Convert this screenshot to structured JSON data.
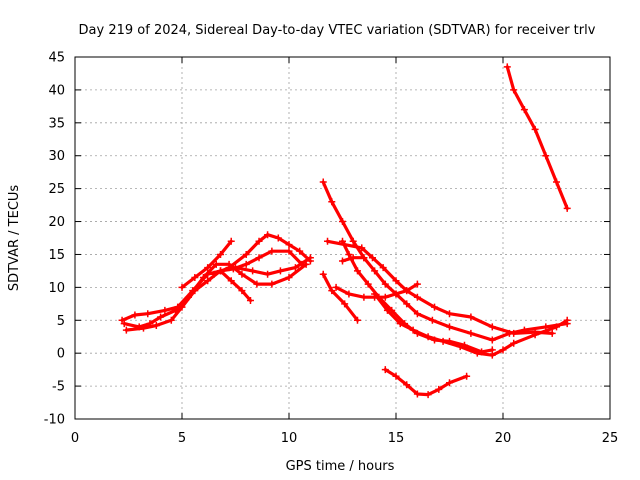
{
  "chart_data": {
    "type": "line",
    "title": "Day 219 of 2024, Sidereal Day-to-day VTEC variation (SDTVAR) for receiver trlv",
    "xlabel": "GPS time / hours",
    "ylabel": "SDTVAR / TECUs",
    "xlim": [
      0,
      25
    ],
    "ylim": [
      -10,
      45
    ],
    "xticks": [
      0,
      5,
      10,
      15,
      20,
      25
    ],
    "yticks": [
      -10,
      -5,
      0,
      5,
      10,
      15,
      20,
      25,
      30,
      35,
      40,
      45
    ],
    "grid": true,
    "color": "#ff0000",
    "series": [
      {
        "name": "trace-1",
        "points": [
          [
            2.3,
            4.5
          ],
          [
            3.0,
            4.0
          ],
          [
            3.5,
            4.5
          ],
          [
            4.0,
            5.5
          ],
          [
            4.7,
            6.5
          ],
          [
            5.3,
            8.5
          ],
          [
            6.0,
            11.5
          ],
          [
            6.6,
            13.5
          ],
          [
            7.2,
            13.5
          ],
          [
            7.8,
            12.0
          ],
          [
            8.5,
            10.5
          ],
          [
            9.2,
            10.5
          ],
          [
            10.0,
            11.5
          ],
          [
            10.8,
            13.5
          ]
        ]
      },
      {
        "name": "trace-2",
        "points": [
          [
            2.2,
            5.0
          ],
          [
            2.8,
            5.8
          ],
          [
            3.4,
            6.0
          ],
          [
            4.2,
            6.5
          ],
          [
            4.8,
            7.0
          ],
          [
            5.5,
            9.5
          ],
          [
            6.2,
            12.0
          ],
          [
            6.8,
            12.5
          ],
          [
            7.5,
            13.0
          ],
          [
            8.3,
            12.5
          ],
          [
            9.0,
            12.0
          ],
          [
            9.6,
            12.5
          ],
          [
            10.3,
            13.0
          ],
          [
            11.0,
            14.5
          ]
        ]
      },
      {
        "name": "trace-3",
        "points": [
          [
            2.4,
            3.5
          ],
          [
            3.2,
            3.8
          ],
          [
            3.8,
            4.2
          ],
          [
            4.5,
            5.0
          ],
          [
            5.0,
            7.0
          ],
          [
            5.6,
            9.5
          ],
          [
            6.2,
            11.0
          ],
          [
            6.8,
            12.5
          ],
          [
            7.4,
            12.8
          ],
          [
            8.0,
            13.5
          ],
          [
            8.6,
            14.5
          ],
          [
            9.2,
            15.5
          ],
          [
            10.0,
            15.5
          ],
          [
            10.6,
            13.5
          ]
        ]
      },
      {
        "name": "trace-4",
        "points": [
          [
            5.0,
            10.0
          ],
          [
            5.6,
            11.5
          ],
          [
            6.2,
            13.0
          ],
          [
            6.8,
            15.0
          ],
          [
            7.3,
            17.0
          ]
        ]
      },
      {
        "name": "trace-5",
        "points": [
          [
            6.5,
            12.0
          ],
          [
            7.2,
            13.0
          ],
          [
            8.0,
            15.0
          ],
          [
            8.6,
            17.0
          ],
          [
            9.0,
            18.0
          ],
          [
            9.5,
            17.5
          ],
          [
            10.0,
            16.5
          ],
          [
            10.5,
            15.5
          ],
          [
            11.0,
            14.0
          ]
        ]
      },
      {
        "name": "trace-6",
        "points": [
          [
            6.8,
            12.5
          ],
          [
            7.3,
            11.0
          ],
          [
            7.8,
            9.5
          ],
          [
            8.2,
            8.0
          ]
        ]
      },
      {
        "name": "trace-7",
        "points": [
          [
            11.6,
            26.0
          ],
          [
            12.0,
            23.0
          ],
          [
            12.5,
            20.0
          ],
          [
            13.0,
            17.0
          ],
          [
            13.5,
            14.5
          ],
          [
            14.0,
            12.5
          ],
          [
            14.5,
            10.5
          ],
          [
            15.0,
            9.0
          ],
          [
            15.5,
            7.5
          ],
          [
            16.0,
            6.0
          ],
          [
            16.7,
            5.0
          ],
          [
            17.5,
            4.0
          ],
          [
            18.5,
            3.0
          ],
          [
            19.5,
            2.0
          ],
          [
            20.3,
            3.0
          ],
          [
            21.0,
            3.5
          ],
          [
            22.0,
            4.0
          ],
          [
            23.0,
            4.5
          ]
        ]
      },
      {
        "name": "trace-8",
        "points": [
          [
            11.6,
            12.0
          ],
          [
            12.0,
            9.5
          ],
          [
            12.6,
            7.5
          ],
          [
            13.2,
            5.0
          ]
        ]
      },
      {
        "name": "trace-9",
        "points": [
          [
            11.8,
            17.0
          ],
          [
            12.6,
            16.5
          ],
          [
            13.4,
            16.0
          ],
          [
            13.9,
            14.5
          ],
          [
            14.4,
            13.0
          ],
          [
            15.0,
            11.0
          ],
          [
            15.5,
            9.5
          ],
          [
            16.0,
            8.5
          ],
          [
            16.8,
            7.0
          ],
          [
            17.5,
            6.0
          ],
          [
            18.5,
            5.5
          ],
          [
            19.5,
            4.0
          ],
          [
            20.5,
            3.0
          ],
          [
            21.5,
            3.2
          ],
          [
            22.3,
            3.0
          ]
        ]
      },
      {
        "name": "trace-10",
        "points": [
          [
            12.5,
            17.0
          ],
          [
            12.8,
            15.0
          ],
          [
            13.2,
            12.5
          ],
          [
            13.7,
            10.5
          ],
          [
            14.2,
            8.5
          ],
          [
            14.8,
            6.5
          ],
          [
            15.4,
            4.5
          ],
          [
            16.0,
            3.0
          ],
          [
            16.8,
            2.0
          ],
          [
            17.5,
            1.8
          ],
          [
            18.2,
            1.2
          ],
          [
            19.0,
            0.2
          ],
          [
            19.5,
            0.5
          ]
        ]
      },
      {
        "name": "trace-11",
        "points": [
          [
            12.2,
            10.0
          ],
          [
            12.8,
            9.0
          ],
          [
            13.5,
            8.5
          ],
          [
            14.0,
            8.5
          ],
          [
            14.5,
            8.5
          ],
          [
            15.0,
            9.0
          ],
          [
            15.5,
            9.5
          ],
          [
            16.0,
            10.5
          ]
        ]
      },
      {
        "name": "trace-12",
        "points": [
          [
            14.0,
            9.0
          ],
          [
            14.6,
            6.5
          ],
          [
            15.2,
            4.5
          ],
          [
            15.8,
            3.5
          ],
          [
            16.5,
            2.5
          ],
          [
            17.2,
            1.8
          ],
          [
            18.0,
            1.0
          ],
          [
            18.8,
            0.0
          ],
          [
            19.5,
            -0.3
          ],
          [
            20.0,
            0.5
          ],
          [
            20.5,
            1.5
          ],
          [
            21.5,
            2.8
          ],
          [
            22.5,
            4.0
          ],
          [
            23.0,
            5.0
          ]
        ]
      },
      {
        "name": "trace-13",
        "points": [
          [
            12.5,
            14.0
          ],
          [
            13.0,
            14.5
          ],
          [
            13.5,
            14.5
          ]
        ]
      },
      {
        "name": "trace-14",
        "points": [
          [
            14.5,
            -2.5
          ],
          [
            15.0,
            -3.5
          ],
          [
            15.5,
            -4.8
          ],
          [
            16.0,
            -6.2
          ],
          [
            16.5,
            -6.3
          ],
          [
            17.0,
            -5.5
          ],
          [
            17.5,
            -4.5
          ],
          [
            18.3,
            -3.5
          ]
        ]
      },
      {
        "name": "trace-15",
        "points": [
          [
            20.2,
            43.5
          ],
          [
            20.5,
            40.0
          ],
          [
            21.0,
            37.0
          ],
          [
            21.5,
            34.0
          ],
          [
            22.0,
            30.0
          ],
          [
            22.5,
            26.0
          ],
          [
            23.0,
            22.0
          ]
        ]
      }
    ]
  }
}
